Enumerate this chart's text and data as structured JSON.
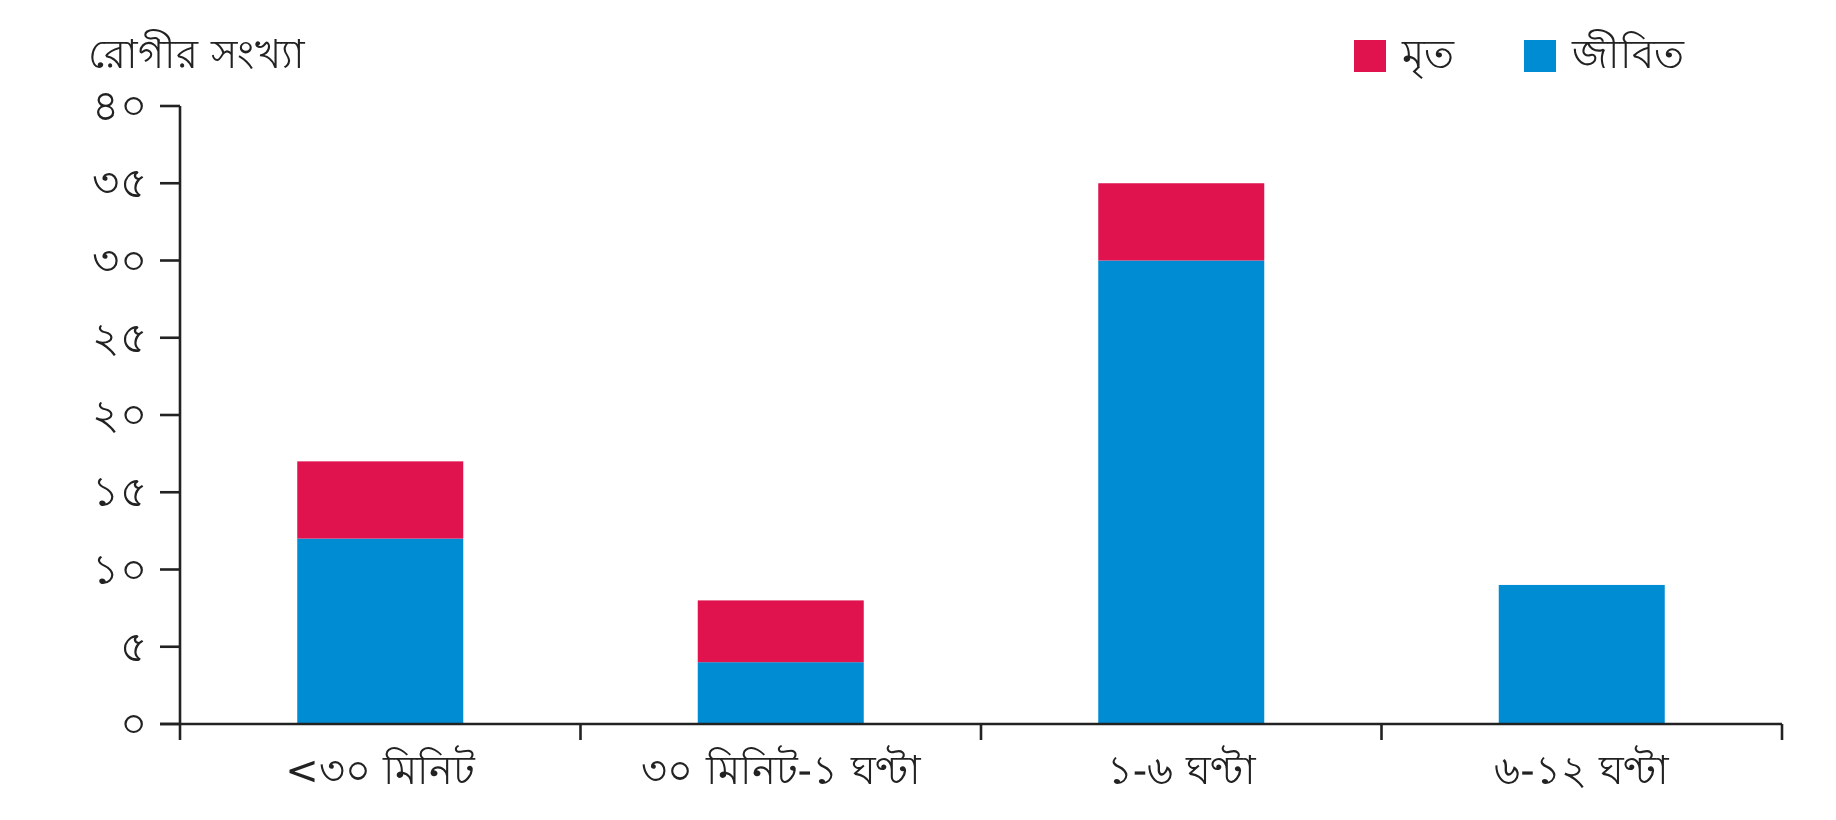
{
  "chart_data": {
    "type": "bar",
    "stacked": true,
    "ylabel": "রোগীর সংখ্যা",
    "legend": "top right",
    "categories": [
      "<৩০ মিনিট",
      "৩০ মিনিট-১ ঘণ্টা",
      "১-৬ ঘণ্টা",
      "৬-১২ ঘণ্টা"
    ],
    "series": [
      {
        "name": "জীবিত",
        "color": "#008cd2",
        "values": [
          12,
          4,
          30,
          9
        ]
      },
      {
        "name": "মৃত",
        "color": "#e0134f",
        "values": [
          5,
          4,
          5,
          0
        ]
      }
    ],
    "ylim": [
      0,
      40
    ],
    "yticks": [
      {
        "value": 0,
        "label": "০"
      },
      {
        "value": 5,
        "label": "৫"
      },
      {
        "value": 10,
        "label": "১০"
      },
      {
        "value": 15,
        "label": "১৫"
      },
      {
        "value": 20,
        "label": "২০"
      },
      {
        "value": 25,
        "label": "২৫"
      },
      {
        "value": 30,
        "label": "৩০"
      },
      {
        "value": 35,
        "label": "৩৫"
      },
      {
        "value": 40,
        "label": "৪০"
      }
    ],
    "grid": false
  }
}
